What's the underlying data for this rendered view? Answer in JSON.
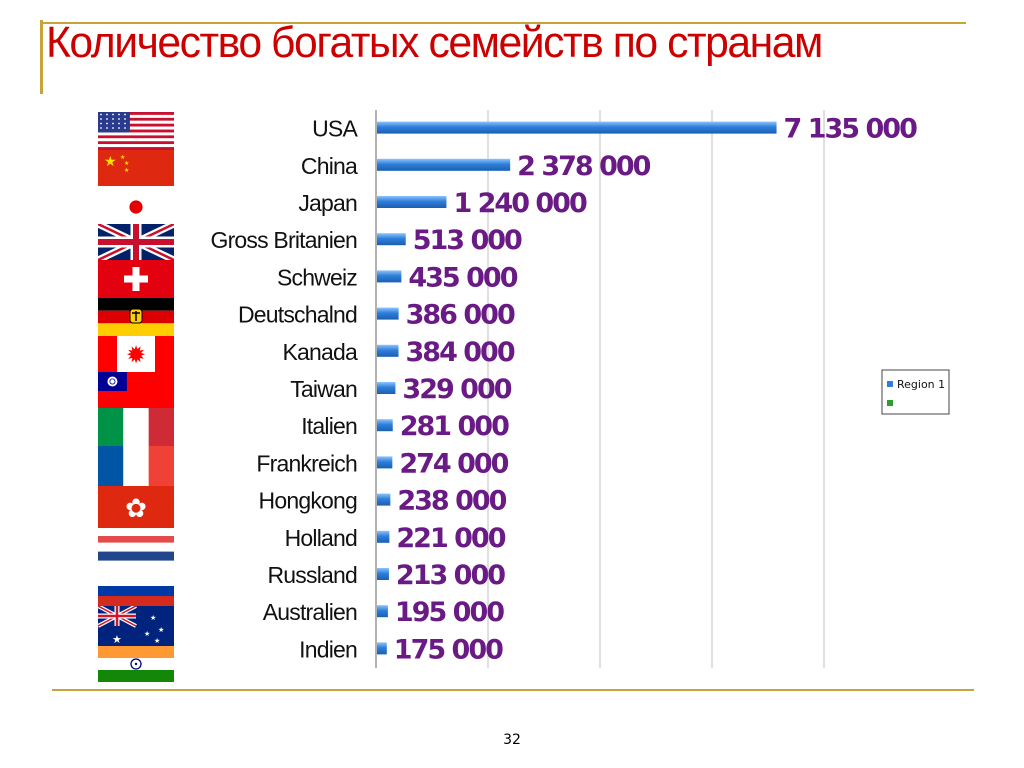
{
  "slide": {
    "title": "Количество богатых семейств по странам",
    "page_number": "32"
  },
  "colors": {
    "title": "#cc0000",
    "bar": "#2f7fd8",
    "value_label": "#6a1a84",
    "accent_line": "#c8a23a",
    "legend_series_1": "#2f7fd8",
    "legend_series_2": "#2aa02a"
  },
  "chart_data": {
    "type": "bar",
    "orientation": "horizontal",
    "categories": [
      "USA",
      "China",
      "Japan",
      "Gross Britanien",
      "Schweiz",
      "Deutschalnd",
      "Kanada",
      "Taiwan",
      "Italien",
      "Frankreich",
      "Hongkong",
      "Holland",
      "Russland",
      "Australien",
      "Indien"
    ],
    "series": [
      {
        "name": "Region 1",
        "values": [
          7135000,
          2378000,
          1240000,
          513000,
          435000,
          386000,
          384000,
          329000,
          281000,
          274000,
          238000,
          221000,
          213000,
          195000,
          175000
        ]
      }
    ],
    "value_labels": [
      "7 135 000",
      "2 378 000",
      "1 240 000",
      "513 000",
      "435 000",
      "386 000",
      "384 000",
      "329 000",
      "281 000",
      "274 000",
      "238 000",
      "221 000",
      "213 000",
      "195 000",
      "175 000"
    ],
    "legend": {
      "placement": "right",
      "entries": [
        "Region 1",
        ""
      ]
    },
    "xlim": [
      0,
      8000000
    ],
    "grid": true,
    "title": "",
    "xlabel": "",
    "ylabel": ""
  },
  "flags": [
    {
      "icon": "usa-flag-icon"
    },
    {
      "icon": "china-flag-icon"
    },
    {
      "icon": "japan-flag-icon"
    },
    {
      "icon": "uk-flag-icon"
    },
    {
      "icon": "switzerland-flag-icon"
    },
    {
      "icon": "germany-flag-icon"
    },
    {
      "icon": "canada-flag-icon"
    },
    {
      "icon": "taiwan-flag-icon"
    },
    {
      "icon": "italy-flag-icon"
    },
    {
      "icon": "france-flag-icon"
    },
    {
      "icon": "hongkong-flag-icon"
    },
    {
      "icon": "netherlands-flag-icon"
    },
    {
      "icon": "russia-flag-icon"
    },
    {
      "icon": "australia-flag-icon"
    },
    {
      "icon": "india-flag-icon"
    }
  ]
}
